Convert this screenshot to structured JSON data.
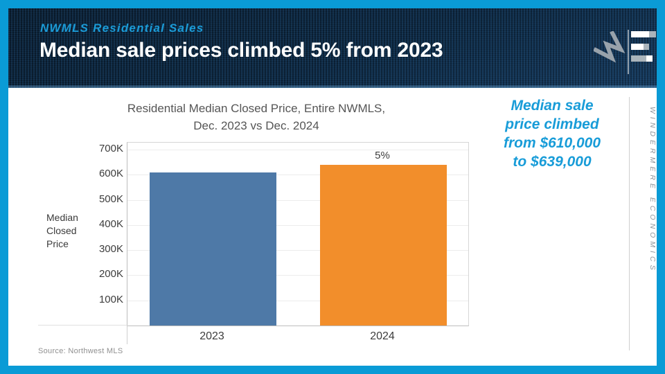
{
  "header": {
    "kicker": "NWMLS Residential Sales",
    "title": "Median sale prices climbed 5% from 2023"
  },
  "branding": {
    "windermere_logo_icon": "windermere-w-diamond-icon",
    "chart_bars_icon": "horizontal-bar-chart-icon",
    "sidebar_text": "WINDERMERE ECONOMICS"
  },
  "annotation": {
    "lines": [
      "Median sale",
      "price climbed",
      "from $610,000",
      "to $639,000"
    ],
    "color": "#189cd8"
  },
  "source_note": "Source: Northwest MLS",
  "colors": {
    "frame": "#0a9bd6",
    "header_bg": "#0d2740",
    "kicker_blue": "#1b9cd8",
    "bar_2023": "#4e79a7",
    "bar_2024": "#f28e2b"
  },
  "chart_data": {
    "type": "bar",
    "title_lines": [
      "Residential Median Closed Price, Entire NWMLS,",
      "Dec. 2023 vs Dec. 2024"
    ],
    "ylabel": "Median Closed Price",
    "categories": [
      "2023",
      "2024"
    ],
    "values": [
      610000,
      639000
    ],
    "bar_labels": [
      "",
      "5%"
    ],
    "bar_colors": [
      "#4e79a7",
      "#f28e2b"
    ],
    "yticks": [
      100000,
      200000,
      300000,
      400000,
      500000,
      600000,
      700000
    ],
    "ytick_labels": [
      "100K",
      "200K",
      "300K",
      "400K",
      "500K",
      "600K",
      "700K"
    ],
    "ylim": [
      0,
      727500
    ],
    "grid": true,
    "legend": false
  }
}
